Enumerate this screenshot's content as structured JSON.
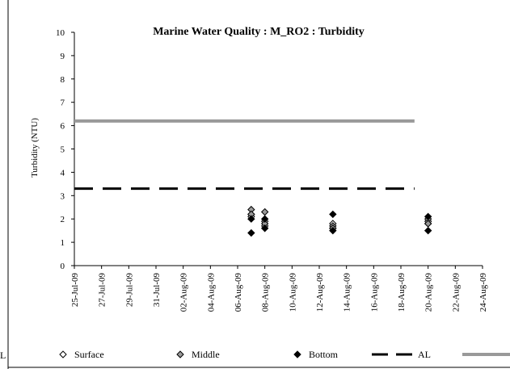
{
  "chart_data": {
    "type": "scatter",
    "title": "Marine Water Quality : M_RO2  : Turbidity",
    "ylabel": "Turbidity (NTU)",
    "xlabel": "",
    "ylim": [
      0,
      10
    ],
    "yticks": [
      "0",
      "1",
      "2",
      "3",
      "4",
      "5",
      "6",
      "7",
      "8",
      "9",
      "10"
    ],
    "xlim": [
      "2009-07-25",
      "2009-08-24"
    ],
    "xtick_labels": [
      "25-Jul-09",
      "27-Jul-09",
      "29-Jul-09",
      "31-Jul-09",
      "02-Aug-09",
      "04-Aug-09",
      "06-Aug-09",
      "08-Aug-09",
      "10-Aug-09",
      "12-Aug-09",
      "14-Aug-09",
      "16-Aug-09",
      "18-Aug-09",
      "20-Aug-09",
      "22-Aug-09",
      "24-Aug-09"
    ],
    "grid": false,
    "legend_position": "bottom",
    "series": [
      {
        "name": "Surface",
        "marker": "open-diamond",
        "color": "#000000",
        "points": [
          {
            "x": "2009-08-07",
            "y": 2.2
          },
          {
            "x": "2009-08-07",
            "y": 2.1
          },
          {
            "x": "2009-08-08",
            "y": 1.9
          },
          {
            "x": "2009-08-08",
            "y": 1.7
          },
          {
            "x": "2009-08-13",
            "y": 1.8
          },
          {
            "x": "2009-08-13",
            "y": 1.6
          },
          {
            "x": "2009-08-20",
            "y": 1.8
          },
          {
            "x": "2009-08-20",
            "y": 1.9
          }
        ]
      },
      {
        "name": "Middle",
        "marker": "gray-diamond",
        "color": "#999999",
        "points": [
          {
            "x": "2009-08-07",
            "y": 2.4
          },
          {
            "x": "2009-08-07",
            "y": 2.2
          },
          {
            "x": "2009-08-08",
            "y": 2.3
          },
          {
            "x": "2009-08-08",
            "y": 1.8
          },
          {
            "x": "2009-08-13",
            "y": 1.7
          },
          {
            "x": "2009-08-13",
            "y": 1.6
          },
          {
            "x": "2009-08-20",
            "y": 2.0
          },
          {
            "x": "2009-08-20",
            "y": 1.8
          }
        ]
      },
      {
        "name": "Bottom",
        "marker": "filled-diamond",
        "color": "#000000",
        "points": [
          {
            "x": "2009-08-07",
            "y": 2.0
          },
          {
            "x": "2009-08-07",
            "y": 1.4
          },
          {
            "x": "2009-08-08",
            "y": 1.6
          },
          {
            "x": "2009-08-08",
            "y": 2.0
          },
          {
            "x": "2009-08-13",
            "y": 2.2
          },
          {
            "x": "2009-08-13",
            "y": 1.5
          },
          {
            "x": "2009-08-20",
            "y": 2.1
          },
          {
            "x": "2009-08-20",
            "y": 1.5
          }
        ]
      }
    ],
    "reference_lines": [
      {
        "name": "AL",
        "y": 3.3,
        "x_from": "2009-07-25",
        "x_to": "2009-08-19",
        "style": "dashed",
        "color": "#000000"
      },
      {
        "name": "",
        "y": 6.2,
        "x_from": "2009-07-25",
        "x_to": "2009-08-19",
        "style": "solid",
        "color": "#999999"
      }
    ],
    "left_edge_fragment": "L"
  }
}
